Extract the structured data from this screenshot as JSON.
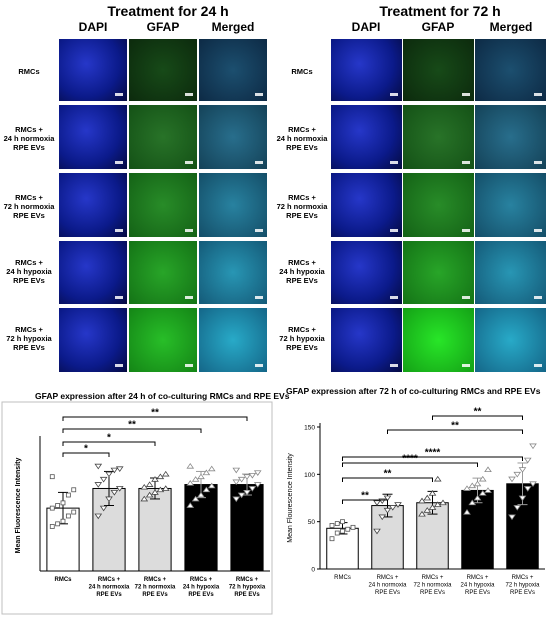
{
  "panel_24h": {
    "title": "Treatment for 24 h",
    "columns": [
      "DAPI",
      "GFAP",
      "Merged"
    ],
    "rows": [
      "RMCs",
      "RMCs +\n24 h normoxia\nRPE EVs",
      "RMCs +\n72 h normoxia\nRPE EVs",
      "RMCs +\n24 h hypoxia\nRPE EVs",
      "RMCs +\n72 h hypoxia\nRPE EVs"
    ]
  },
  "panel_72h": {
    "title": "Treatment for 72 h",
    "columns": [
      "DAPI",
      "GFAP",
      "Merged"
    ],
    "rows": [
      "RMCs",
      "RMCs +\n24 h normoxia\nRPE EVs",
      "RMCs +\n72 h normoxia\nRPE EVs",
      "RMCs +\n24 h hypoxia\nRPE EVs",
      "RMCs +\n72 h hypoxia\nRPE EVs"
    ]
  },
  "colors": {
    "dapi": "#0b1a8a",
    "gfap": "#1f7a22",
    "merged": "#1a5d7a",
    "bar_white": "#ffffff",
    "bar_grey": "#dcdcdc",
    "bar_black": "#000000"
  },
  "chart_data": [
    {
      "type": "bar",
      "title": "GFAP expression after 24 h of co-culturing RMCs and RPE EVs",
      "ylabel": "Mean Fluorescence Intensity",
      "categories": [
        "RMCs",
        "RMCs +\n24 h normoxia\nRPE EVs",
        "RMCs +\n72 h normoxia\nRPE EVs",
        "RMCs +\n24 h hypoxia\nRPE EVs",
        "RMCs +\n72 h hypoxia\nRPE EVs"
      ],
      "values": [
        48,
        63,
        63,
        66,
        66
      ],
      "errors": [
        12,
        13,
        8,
        10,
        8
      ],
      "bar_colors": [
        "white",
        "grey",
        "grey",
        "black",
        "black"
      ],
      "points": [
        [
          34,
          36,
          38,
          42,
          45,
          48,
          50,
          52,
          58,
          62,
          72
        ],
        [
          42,
          48,
          55,
          60,
          63,
          66,
          70,
          74,
          77,
          78,
          80
        ],
        [
          55,
          58,
          60,
          62,
          63,
          64,
          66,
          70,
          72,
          74
        ],
        [
          50,
          55,
          58,
          62,
          65,
          67,
          70,
          72,
          75,
          78,
          80
        ],
        [
          55,
          58,
          60,
          63,
          66,
          68,
          70,
          72,
          73,
          75,
          77
        ]
      ],
      "ylim": [
        0,
        100
      ],
      "yticks": [],
      "significance": [
        {
          "from": 0,
          "to": 1,
          "label": "*"
        },
        {
          "from": 0,
          "to": 2,
          "label": "*"
        },
        {
          "from": 0,
          "to": 3,
          "label": "**"
        },
        {
          "from": 0,
          "to": 4,
          "label": "**"
        }
      ]
    },
    {
      "type": "bar",
      "title": "GFAP expression after 72 h of co-culturing RMCs and RPE EVs",
      "ylabel": "Mean Flourescence Intensity",
      "categories": [
        "RMCs",
        "RMCs +\n24 h normoxia\nRPE EVs",
        "RMCs +\n72 h normoxia\nRPE EVs",
        "RMCs +\n24 h hypoxia\nRPE EVs",
        "RMCs +\n72 h hypoxia\nRPE EVs"
      ],
      "values": [
        43,
        67,
        70,
        83,
        90
      ],
      "errors": [
        6,
        12,
        12,
        13,
        22
      ],
      "bar_colors": [
        "white",
        "grey",
        "grey",
        "black",
        "black"
      ],
      "points": [
        [
          32,
          38,
          40,
          42,
          44,
          46,
          48,
          50
        ],
        [
          40,
          55,
          62,
          65,
          68,
          70,
          72,
          75
        ],
        [
          58,
          62,
          65,
          68,
          70,
          72,
          75,
          80,
          95
        ],
        [
          60,
          70,
          75,
          80,
          83,
          85,
          88,
          90,
          95,
          105
        ],
        [
          55,
          65,
          75,
          85,
          90,
          95,
          100,
          105,
          115,
          130
        ]
      ],
      "ylim": [
        0,
        150
      ],
      "yticks": [
        0,
        50,
        100,
        150
      ],
      "significance": [
        {
          "from": 0,
          "to": 1,
          "label": "**"
        },
        {
          "from": 0,
          "to": 2,
          "label": "**"
        },
        {
          "from": 0,
          "to": 3,
          "label": "****"
        },
        {
          "from": 0,
          "to": 4,
          "label": "****"
        },
        {
          "from": 1,
          "to": 4,
          "label": "**"
        },
        {
          "from": 2,
          "to": 4,
          "label": "**"
        }
      ]
    }
  ]
}
